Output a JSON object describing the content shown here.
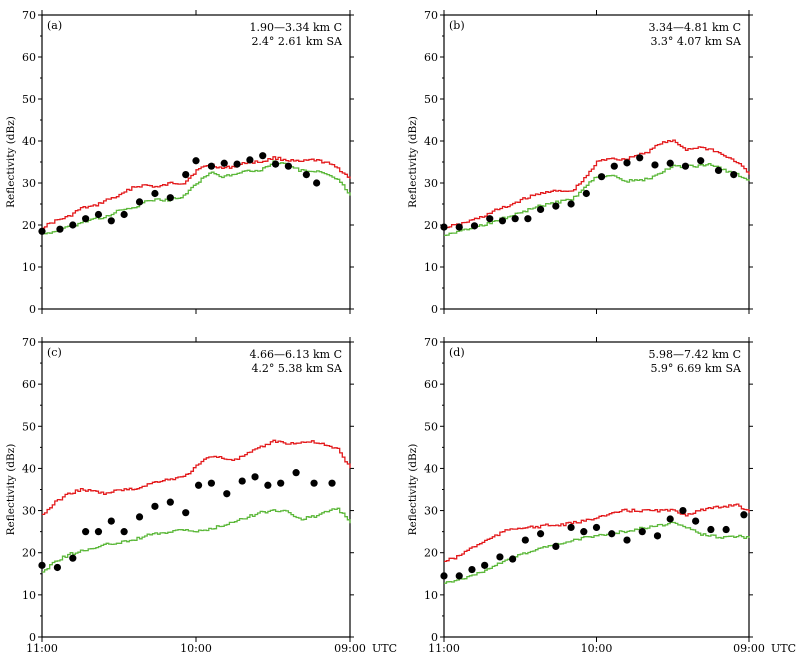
{
  "colors": {
    "c_band": "#e31a1c",
    "sa_band": "#5cb83a",
    "obs": "#000000"
  },
  "x_axis": {
    "ticks": [
      "11:00",
      "10:00",
      "09:00"
    ],
    "unit": "UTC"
  },
  "chart_data": [
    {
      "type": "line",
      "panel": "(a)",
      "ylabel": "Reflectivity (dBz)",
      "ylim": [
        0,
        70
      ],
      "yticks": [
        0,
        10,
        20,
        30,
        40,
        50,
        60,
        70
      ],
      "xlim": [
        0,
        120
      ],
      "legend": {
        "line1": "1.90—3.34 km C",
        "line2": "2.4°  2.61 km SA"
      },
      "series": [
        {
          "name": "C",
          "values": [
            [
              0,
              19.5
            ],
            [
              5,
              21
            ],
            [
              10,
              22
            ],
            [
              15,
              24
            ],
            [
              20,
              24.5
            ],
            [
              25,
              26
            ],
            [
              30,
              27
            ],
            [
              35,
              29
            ],
            [
              40,
              29.5
            ],
            [
              45,
              29
            ],
            [
              50,
              30
            ],
            [
              55,
              30
            ],
            [
              60,
              33
            ],
            [
              65,
              34.5
            ],
            [
              70,
              33.5
            ],
            [
              75,
              34
            ],
            [
              80,
              35
            ],
            [
              85,
              35
            ],
            [
              90,
              36
            ],
            [
              95,
              35.5
            ],
            [
              100,
              35
            ],
            [
              105,
              35.5
            ],
            [
              110,
              35
            ],
            [
              115,
              33.5
            ],
            [
              120,
              31
            ]
          ]
        },
        {
          "name": "SA",
          "values": [
            [
              0,
              18
            ],
            [
              5,
              18.5
            ],
            [
              10,
              19.5
            ],
            [
              15,
              20.5
            ],
            [
              20,
              21.5
            ],
            [
              25,
              22
            ],
            [
              30,
              23.5
            ],
            [
              35,
              24
            ],
            [
              40,
              25.5
            ],
            [
              45,
              26
            ],
            [
              50,
              26
            ],
            [
              55,
              27
            ],
            [
              60,
              30
            ],
            [
              65,
              32.5
            ],
            [
              70,
              31.5
            ],
            [
              75,
              32
            ],
            [
              80,
              33
            ],
            [
              85,
              33
            ],
            [
              90,
              35
            ],
            [
              95,
              34.5
            ],
            [
              100,
              33
            ],
            [
              105,
              33
            ],
            [
              110,
              32
            ],
            [
              115,
              31
            ],
            [
              120,
              27
            ]
          ]
        }
      ],
      "points": [
        [
          0,
          18.5
        ],
        [
          7,
          19
        ],
        [
          12,
          20
        ],
        [
          17,
          21.5
        ],
        [
          22,
          22.5
        ],
        [
          27,
          21
        ],
        [
          32,
          22.5
        ],
        [
          38,
          25.5
        ],
        [
          44,
          27.5
        ],
        [
          50,
          26.5
        ],
        [
          56,
          32
        ],
        [
          60,
          35.3
        ],
        [
          66,
          34
        ],
        [
          71,
          34.7
        ],
        [
          76,
          34.5
        ],
        [
          81,
          35.5
        ],
        [
          86,
          36.5
        ],
        [
          91,
          34.5
        ],
        [
          96,
          34
        ],
        [
          103,
          32
        ],
        [
          107,
          30
        ]
      ]
    },
    {
      "type": "line",
      "panel": "(b)",
      "ylabel": "Reflectivity (dBz)",
      "ylim": [
        0,
        70
      ],
      "yticks": [
        0,
        10,
        20,
        30,
        40,
        50,
        60,
        70
      ],
      "xlim": [
        0,
        120
      ],
      "legend": {
        "line1": "3.34—4.81 km C",
        "line2": "3.3°  4.07 km SA"
      },
      "series": [
        {
          "name": "C",
          "values": [
            [
              0,
              19.5
            ],
            [
              5,
              20
            ],
            [
              10,
              21
            ],
            [
              15,
              22
            ],
            [
              20,
              23.5
            ],
            [
              25,
              24.5
            ],
            [
              30,
              26
            ],
            [
              35,
              27
            ],
            [
              40,
              28
            ],
            [
              45,
              28
            ],
            [
              50,
              28
            ],
            [
              55,
              31
            ],
            [
              60,
              35
            ],
            [
              65,
              36
            ],
            [
              70,
              35.5
            ],
            [
              75,
              36.5
            ],
            [
              80,
              37.5
            ],
            [
              85,
              39.5
            ],
            [
              90,
              40
            ],
            [
              95,
              38
            ],
            [
              100,
              38.5
            ],
            [
              105,
              38
            ],
            [
              110,
              36.5
            ],
            [
              115,
              35
            ],
            [
              120,
              32
            ]
          ]
        },
        {
          "name": "SA",
          "values": [
            [
              0,
              17.5
            ],
            [
              5,
              18.5
            ],
            [
              10,
              19
            ],
            [
              15,
              20
            ],
            [
              20,
              21
            ],
            [
              25,
              22
            ],
            [
              30,
              23
            ],
            [
              35,
              24
            ],
            [
              40,
              25
            ],
            [
              45,
              25.5
            ],
            [
              50,
              26
            ],
            [
              55,
              29
            ],
            [
              60,
              31.5
            ],
            [
              65,
              32
            ],
            [
              70,
              30.5
            ],
            [
              75,
              30.5
            ],
            [
              80,
              31
            ],
            [
              85,
              32.5
            ],
            [
              90,
              34
            ],
            [
              95,
              34
            ],
            [
              100,
              34
            ],
            [
              105,
              34.5
            ],
            [
              110,
              33
            ],
            [
              115,
              32
            ],
            [
              120,
              30.5
            ]
          ]
        }
      ],
      "points": [
        [
          0,
          19.5
        ],
        [
          6,
          19.5
        ],
        [
          12,
          19.8
        ],
        [
          18,
          21.5
        ],
        [
          23,
          21
        ],
        [
          28,
          21.5
        ],
        [
          33,
          21.5
        ],
        [
          38,
          23.7
        ],
        [
          44,
          24.5
        ],
        [
          50,
          25
        ],
        [
          56,
          27.5
        ],
        [
          62,
          31.5
        ],
        [
          67,
          34
        ],
        [
          72,
          34.8
        ],
        [
          77,
          36
        ],
        [
          83,
          34.3
        ],
        [
          89,
          34.7
        ],
        [
          95,
          34
        ],
        [
          101,
          35.3
        ],
        [
          108,
          33
        ],
        [
          114,
          32
        ]
      ]
    },
    {
      "type": "line",
      "panel": "(c)",
      "ylabel": "Reflectivity (dBz)",
      "ylim": [
        0,
        70
      ],
      "yticks": [
        0,
        10,
        20,
        30,
        40,
        50,
        60,
        70
      ],
      "xlim": [
        0,
        120
      ],
      "legend": {
        "line1": "4.66—6.13 km C",
        "line2": "4.2°  5.38 km SA"
      },
      "series": [
        {
          "name": "C",
          "values": [
            [
              0,
              29
            ],
            [
              5,
              32
            ],
            [
              10,
              34
            ],
            [
              15,
              35
            ],
            [
              20,
              34.5
            ],
            [
              25,
              34
            ],
            [
              30,
              35
            ],
            [
              35,
              35
            ],
            [
              40,
              36
            ],
            [
              45,
              37
            ],
            [
              50,
              37.5
            ],
            [
              55,
              38
            ],
            [
              60,
              40.5
            ],
            [
              65,
              43
            ],
            [
              70,
              42.5
            ],
            [
              75,
              42
            ],
            [
              80,
              43.5
            ],
            [
              85,
              45
            ],
            [
              90,
              46.5
            ],
            [
              95,
              46
            ],
            [
              100,
              46
            ],
            [
              105,
              46.5
            ],
            [
              110,
              45.5
            ],
            [
              115,
              44.5
            ],
            [
              120,
              40
            ]
          ]
        },
        {
          "name": "SA",
          "values": [
            [
              0,
              15.5
            ],
            [
              5,
              18
            ],
            [
              10,
              19.5
            ],
            [
              15,
              20.5
            ],
            [
              20,
              21
            ],
            [
              25,
              22
            ],
            [
              30,
              22.5
            ],
            [
              35,
              23
            ],
            [
              40,
              24
            ],
            [
              45,
              24.5
            ],
            [
              50,
              25
            ],
            [
              55,
              25.5
            ],
            [
              60,
              25
            ],
            [
              65,
              25.5
            ],
            [
              70,
              26.5
            ],
            [
              75,
              27.5
            ],
            [
              80,
              28.5
            ],
            [
              85,
              29.5
            ],
            [
              90,
              30
            ],
            [
              95,
              30
            ],
            [
              100,
              28
            ],
            [
              105,
              28.5
            ],
            [
              110,
              29.5
            ],
            [
              115,
              30.5
            ],
            [
              120,
              27
            ]
          ]
        }
      ],
      "points": [
        [
          0,
          17
        ],
        [
          6,
          16.5
        ],
        [
          12,
          18.7
        ],
        [
          17,
          25
        ],
        [
          22,
          25
        ],
        [
          27,
          27.5
        ],
        [
          32,
          25
        ],
        [
          38,
          28.5
        ],
        [
          44,
          31
        ],
        [
          50,
          32
        ],
        [
          56,
          29.5
        ],
        [
          61,
          36
        ],
        [
          66,
          36.5
        ],
        [
          72,
          34
        ],
        [
          78,
          37
        ],
        [
          83,
          38
        ],
        [
          88,
          36
        ],
        [
          93,
          36.5
        ],
        [
          99,
          39
        ],
        [
          106,
          36.5
        ],
        [
          113,
          36.5
        ]
      ]
    },
    {
      "type": "line",
      "panel": "(d)",
      "ylabel": "Reflectivity (dBz)",
      "ylim": [
        0,
        70
      ],
      "yticks": [
        0,
        10,
        20,
        30,
        40,
        50,
        60,
        70
      ],
      "xlim": [
        0,
        120
      ],
      "legend": {
        "line1": "5.98—7.42 km C",
        "line2": "5.9°  6.69 km SA"
      },
      "series": [
        {
          "name": "C",
          "values": [
            [
              0,
              18
            ],
            [
              5,
              19
            ],
            [
              10,
              21
            ],
            [
              15,
              22.5
            ],
            [
              20,
              24
            ],
            [
              25,
              25.5
            ],
            [
              30,
              26
            ],
            [
              35,
              26
            ],
            [
              40,
              26.5
            ],
            [
              45,
              26.5
            ],
            [
              50,
              27
            ],
            [
              55,
              27.5
            ],
            [
              60,
              28.5
            ],
            [
              65,
              29
            ],
            [
              70,
              30
            ],
            [
              75,
              30
            ],
            [
              80,
              30
            ],
            [
              85,
              30
            ],
            [
              90,
              30
            ],
            [
              95,
              29
            ],
            [
              100,
              30
            ],
            [
              105,
              30.5
            ],
            [
              110,
              31
            ],
            [
              115,
              31.5
            ],
            [
              120,
              29.5
            ]
          ]
        },
        {
          "name": "SA",
          "values": [
            [
              0,
              13
            ],
            [
              5,
              13.5
            ],
            [
              10,
              14.5
            ],
            [
              15,
              15.5
            ],
            [
              20,
              17
            ],
            [
              25,
              18.5
            ],
            [
              30,
              19.5
            ],
            [
              35,
              20.5
            ],
            [
              40,
              21.5
            ],
            [
              45,
              22
            ],
            [
              50,
              23
            ],
            [
              55,
              23.5
            ],
            [
              60,
              24
            ],
            [
              65,
              24.5
            ],
            [
              70,
              25
            ],
            [
              75,
              25.5
            ],
            [
              80,
              26
            ],
            [
              85,
              26.5
            ],
            [
              90,
              27
            ],
            [
              95,
              26
            ],
            [
              100,
              24.5
            ],
            [
              105,
              24
            ],
            [
              110,
              23.5
            ],
            [
              115,
              24
            ],
            [
              120,
              23.5
            ]
          ]
        }
      ],
      "points": [
        [
          0,
          14.5
        ],
        [
          6,
          14.5
        ],
        [
          11,
          16
        ],
        [
          16,
          17
        ],
        [
          22,
          19
        ],
        [
          27,
          18.5
        ],
        [
          32,
          23
        ],
        [
          38,
          24.5
        ],
        [
          44,
          21.5
        ],
        [
          50,
          26
        ],
        [
          55,
          25
        ],
        [
          60,
          26
        ],
        [
          66,
          24.5
        ],
        [
          72,
          23
        ],
        [
          78,
          25
        ],
        [
          84,
          24
        ],
        [
          89,
          28
        ],
        [
          94,
          30
        ],
        [
          99,
          27.5
        ],
        [
          105,
          25.5
        ],
        [
          111,
          25.5
        ],
        [
          118,
          29
        ]
      ]
    }
  ]
}
